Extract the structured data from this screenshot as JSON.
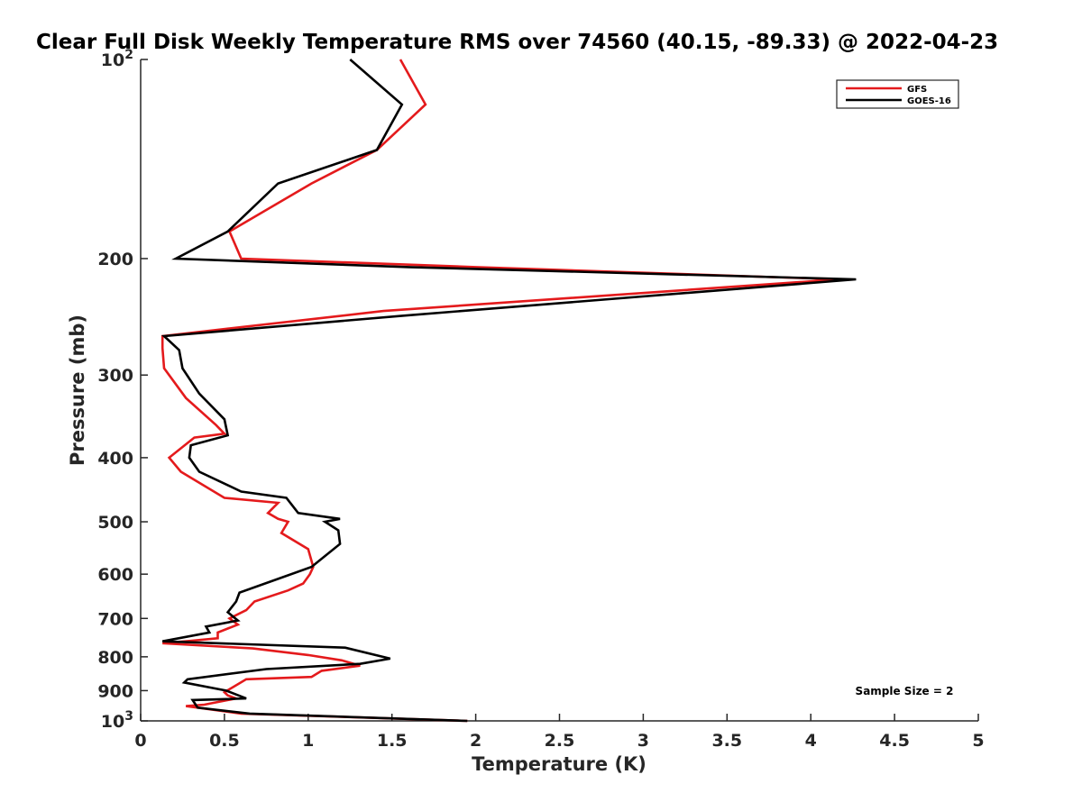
{
  "chart_data": {
    "type": "line",
    "title": "Clear Full Disk Weekly Temperature RMS over 74560 (40.15, -89.33) @ 2022-04-23",
    "xlabel": "Temperature (K)",
    "ylabel": "Pressure (mb)",
    "xlim": [
      0,
      5
    ],
    "ylim": [
      100,
      1000
    ],
    "yscale": "log",
    "y_reversed": true,
    "grid": false,
    "legend_position": "top-right",
    "x_ticks": [
      "0",
      "0.5",
      "1",
      "1.5",
      "2",
      "2.5",
      "3",
      "3.5",
      "4",
      "4.5",
      "5"
    ],
    "y_ticks": [
      {
        "value": 100,
        "label": "10",
        "sup": "2"
      },
      {
        "value": 200,
        "label": "200",
        "sup": ""
      },
      {
        "value": 300,
        "label": "300",
        "sup": ""
      },
      {
        "value": 400,
        "label": "400",
        "sup": ""
      },
      {
        "value": 500,
        "label": "500",
        "sup": ""
      },
      {
        "value": 600,
        "label": "600",
        "sup": ""
      },
      {
        "value": 700,
        "label": "700",
        "sup": ""
      },
      {
        "value": 800,
        "label": "800",
        "sup": ""
      },
      {
        "value": 900,
        "label": "900",
        "sup": ""
      },
      {
        "value": 1000,
        "label": "10",
        "sup": "3"
      }
    ],
    "annotation": "Sample Size = 2",
    "series": [
      {
        "name": "GFS",
        "color": "#e41a1c",
        "x": [
          1.55,
          1.7,
          1.41,
          1.02,
          0.53,
          0.6,
          2.0,
          4.17,
          1.45,
          0.13,
          0.13,
          0.14,
          0.27,
          0.45,
          0.5,
          0.32,
          0.17,
          0.24,
          0.5,
          0.82,
          0.76,
          0.82,
          0.88,
          0.84,
          1.0,
          1.03,
          1.01,
          0.97,
          0.88,
          0.68,
          0.63,
          0.53,
          0.58,
          0.46,
          0.46,
          0.29,
          0.13,
          0.67,
          1.0,
          1.2,
          1.31,
          1.08,
          1.02,
          0.63,
          0.5,
          0.52,
          0.57,
          0.38,
          0.27,
          0.6,
          1.95
        ],
        "y": [
          100,
          117,
          137,
          154,
          182,
          200,
          206,
          215,
          240,
          262,
          273,
          293,
          325,
          357,
          368,
          373,
          400,
          420,
          460,
          468,
          485,
          495,
          500,
          520,
          550,
          585,
          600,
          620,
          635,
          660,
          680,
          700,
          715,
          735,
          750,
          757,
          763,
          777,
          795,
          810,
          825,
          840,
          858,
          865,
          905,
          915,
          925,
          945,
          950,
          975,
          1000
        ]
      },
      {
        "name": "GOES-16",
        "color": "#000000",
        "x": [
          1.25,
          1.56,
          1.41,
          0.82,
          0.52,
          0.21,
          1.6,
          4.27,
          1.57,
          0.14,
          0.23,
          0.25,
          0.35,
          0.5,
          0.52,
          0.3,
          0.29,
          0.35,
          0.6,
          0.87,
          0.94,
          1.19,
          1.1,
          1.18,
          1.19,
          1.02,
          0.82,
          0.59,
          0.57,
          0.52,
          0.58,
          0.39,
          0.41,
          0.13,
          1.22,
          1.49,
          1.31,
          0.75,
          0.28,
          0.26,
          0.51,
          0.63,
          0.31,
          0.34,
          0.65,
          1.95
        ],
        "y": [
          100,
          117,
          137,
          154,
          182,
          200,
          206,
          215,
          244,
          262,
          275,
          293,
          320,
          350,
          370,
          383,
          400,
          420,
          450,
          460,
          485,
          495,
          500,
          515,
          540,
          585,
          610,
          640,
          660,
          685,
          705,
          720,
          735,
          758,
          775,
          805,
          820,
          835,
          865,
          875,
          900,
          925,
          930,
          955,
          975,
          1000
        ]
      }
    ]
  }
}
